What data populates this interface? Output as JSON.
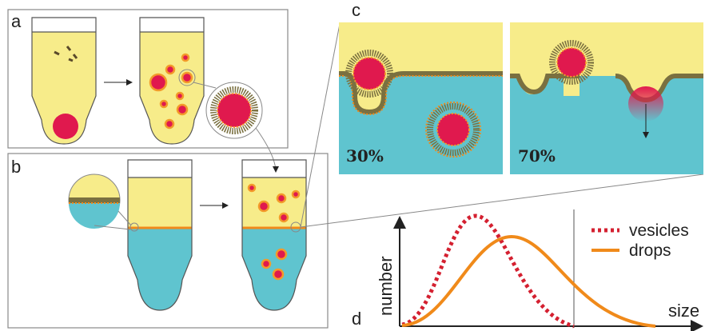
{
  "panel_a": {
    "label": "a"
  },
  "panel_b": {
    "label": "b"
  },
  "panel_c": {
    "label": "c",
    "frames": [
      {
        "label": "30%"
      },
      {
        "label": "70%"
      }
    ]
  },
  "panel_d": {
    "label": "d",
    "y_axis": "number",
    "x_axis": "size",
    "legend": [
      "vesicles",
      "drops"
    ]
  }
}
